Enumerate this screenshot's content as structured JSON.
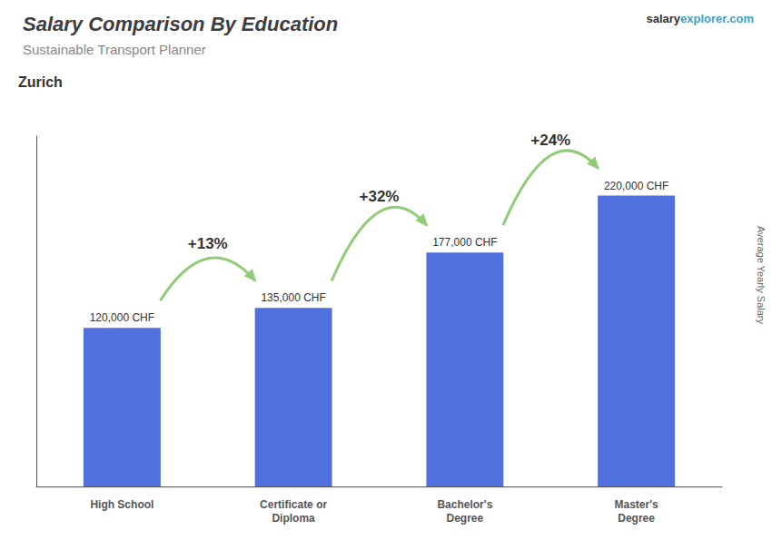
{
  "chart_data": {
    "type": "bar",
    "title": "Salary Comparison By Education",
    "subtitle": "Sustainable Transport Planner",
    "city": "Zurich",
    "watermark": [
      "salary",
      "explorer.com"
    ],
    "side_label": "Average Yearly Salary",
    "categories": [
      "High School",
      "Certificate or\nDiploma",
      "Bachelor's\nDegree",
      "Master's\nDegree"
    ],
    "values": [
      120000,
      135000,
      177000,
      220000
    ],
    "value_labels": [
      "120,000 CHF",
      "135,000 CHF",
      "177,000 CHF",
      "220,000 CHF"
    ],
    "data_labels": true,
    "change_labels": [
      "+13%",
      "+32%",
      "+24%"
    ],
    "ylim": [
      0,
      265000
    ],
    "grid": false,
    "tick_labels": "x"
  }
}
